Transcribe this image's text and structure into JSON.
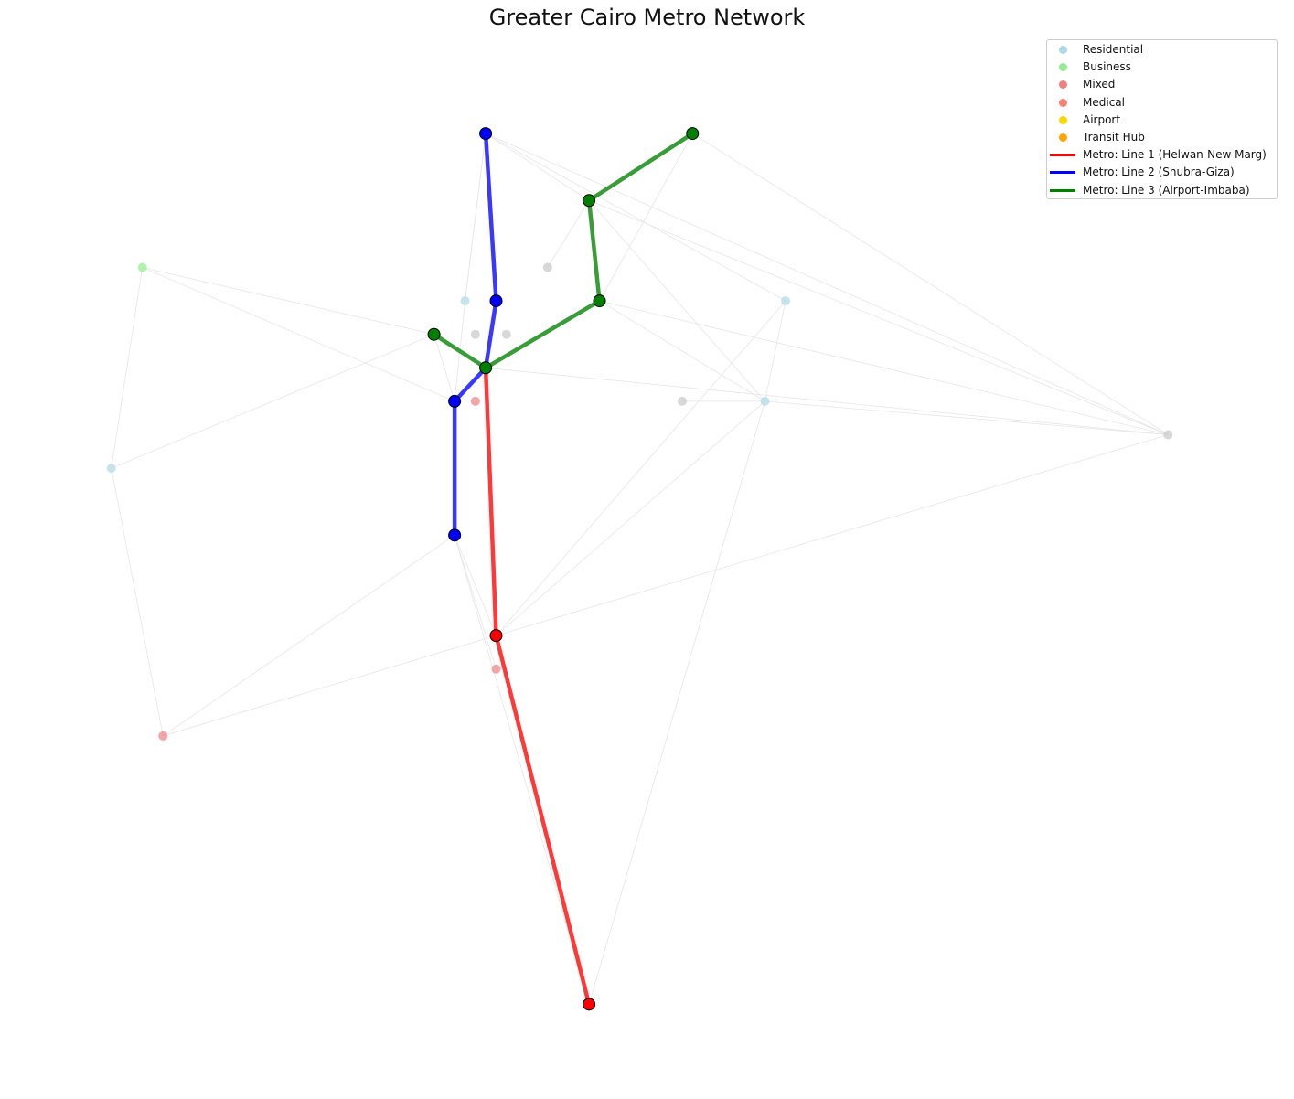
{
  "title": "Greater Cairo Metro Network",
  "colors": {
    "edge": "#e6e6e6",
    "station_outline": "#000000",
    "node_default": "#c8c8c8"
  },
  "legend": [
    {
      "kind": "dot",
      "label": "Residential",
      "color": "#add8e6"
    },
    {
      "kind": "dot",
      "label": "Business",
      "color": "#90ee90"
    },
    {
      "kind": "dot",
      "label": "Mixed",
      "color": "#f08080"
    },
    {
      "kind": "dot",
      "label": "Medical",
      "color": "#fa8072"
    },
    {
      "kind": "dot",
      "label": "Airport",
      "color": "#ffd700"
    },
    {
      "kind": "dot",
      "label": "Transit Hub",
      "color": "#ffa500"
    },
    {
      "kind": "line",
      "label": "Metro: Line 1 (Helwan-New Marg)",
      "color": "#ff0000"
    },
    {
      "kind": "line",
      "label": "Metro: Line 2 (Shubra-Giza)",
      "color": "#0000ff"
    },
    {
      "kind": "line",
      "label": "Metro: Line 3 (Airport-Imbaba)",
      "color": "#008000"
    }
  ],
  "chart_data": {
    "type": "network",
    "title": "Greater Cairo Metro Network",
    "legend_placement": "top-right",
    "grid": false,
    "nodes": [
      {
        "id": "n1",
        "x": 0.3717,
        "y": 0.8915,
        "type": "Line 2 station",
        "color": "#0000ff"
      },
      {
        "id": "n2",
        "x": 0.5362,
        "y": 0.8915,
        "type": "Line 3 station",
        "color": "#008000"
      },
      {
        "id": "n3",
        "x": 0.4539,
        "y": 0.8285,
        "type": "Line 3 station",
        "color": "#008000"
      },
      {
        "id": "n4",
        "x": 0.0987,
        "y": 0.7655,
        "type": "Business",
        "color": "#90ee90"
      },
      {
        "id": "n5",
        "x": 0.421,
        "y": 0.7655,
        "type": "Other",
        "color": "#c8c8c8"
      },
      {
        "id": "n6",
        "x": 0.3553,
        "y": 0.734,
        "type": "Residential",
        "color": "#add8e6"
      },
      {
        "id": "n7",
        "x": 0.38,
        "y": 0.734,
        "type": "Line 2 station",
        "color": "#0000ff"
      },
      {
        "id": "n8",
        "x": 0.4622,
        "y": 0.734,
        "type": "Line 3 station",
        "color": "#008000"
      },
      {
        "id": "n9",
        "x": 0.6102,
        "y": 0.734,
        "type": "Residential",
        "color": "#add8e6"
      },
      {
        "id": "n10",
        "x": 0.3306,
        "y": 0.7025,
        "type": "Line 3 station",
        "color": "#008000"
      },
      {
        "id": "n11",
        "x": 0.3635,
        "y": 0.7025,
        "type": "Other",
        "color": "#c8c8c8"
      },
      {
        "id": "n12",
        "x": 0.3882,
        "y": 0.7025,
        "type": "Other",
        "color": "#c8c8c8"
      },
      {
        "id": "n13",
        "x": 0.3717,
        "y": 0.671,
        "type": "Interchange",
        "color": "#008000"
      },
      {
        "id": "n14",
        "x": 0.347,
        "y": 0.6395,
        "type": "Line 2 station",
        "color": "#0000ff"
      },
      {
        "id": "n15",
        "x": 0.3635,
        "y": 0.6395,
        "type": "Mixed",
        "color": "#f08080"
      },
      {
        "id": "n16",
        "x": 0.528,
        "y": 0.6395,
        "type": "Other",
        "color": "#c8c8c8"
      },
      {
        "id": "n17",
        "x": 0.5938,
        "y": 0.6395,
        "type": "Residential",
        "color": "#add8e6"
      },
      {
        "id": "n18",
        "x": 0.9144,
        "y": 0.608,
        "type": "Other",
        "color": "#c8c8c8"
      },
      {
        "id": "n19",
        "x": 0.074,
        "y": 0.5765,
        "type": "Residential",
        "color": "#add8e6"
      },
      {
        "id": "n20",
        "x": 0.347,
        "y": 0.5135,
        "type": "Line 2 station",
        "color": "#0000ff"
      },
      {
        "id": "n21",
        "x": 0.38,
        "y": 0.419,
        "type": "Line 1 station",
        "color": "#ff0000"
      },
      {
        "id": "n22",
        "x": 0.38,
        "y": 0.3875,
        "type": "Mixed",
        "color": "#f08080"
      },
      {
        "id": "n23",
        "x": 0.1151,
        "y": 0.3245,
        "type": "Mixed",
        "color": "#f08080"
      },
      {
        "id": "n24",
        "x": 0.4539,
        "y": 0.072,
        "type": "Line 1 station",
        "color": "#ff0000"
      }
    ],
    "metro_lines": [
      {
        "name": "Metro: Line 1 (Helwan-New Marg)",
        "color": "#ff0000",
        "stations": [
          "n13",
          "n21",
          "n24"
        ]
      },
      {
        "name": "Metro: Line 2 (Shubra-Giza)",
        "color": "#0000ff",
        "stations": [
          "n1",
          "n7",
          "n13",
          "n14",
          "n20"
        ]
      },
      {
        "name": "Metro: Line 3 (Airport-Imbaba)",
        "color": "#008000",
        "stations": [
          "n2",
          "n3",
          "n8",
          "n13",
          "n10"
        ]
      }
    ],
    "edges": [
      [
        "n1",
        "n3"
      ],
      [
        "n1",
        "n9"
      ],
      [
        "n1",
        "n18"
      ],
      [
        "n1",
        "n6"
      ],
      [
        "n2",
        "n8"
      ],
      [
        "n2",
        "n18"
      ],
      [
        "n3",
        "n17"
      ],
      [
        "n3",
        "n18"
      ],
      [
        "n3",
        "n5"
      ],
      [
        "n4",
        "n10"
      ],
      [
        "n4",
        "n14"
      ],
      [
        "n4",
        "n19"
      ],
      [
        "n6",
        "n14"
      ],
      [
        "n6",
        "n1"
      ],
      [
        "n8",
        "n17"
      ],
      [
        "n8",
        "n18"
      ],
      [
        "n9",
        "n21"
      ],
      [
        "n9",
        "n17"
      ],
      [
        "n10",
        "n19"
      ],
      [
        "n10",
        "n14"
      ],
      [
        "n13",
        "n18"
      ],
      [
        "n16",
        "n17"
      ],
      [
        "n17",
        "n18"
      ],
      [
        "n17",
        "n21"
      ],
      [
        "n17",
        "n24"
      ],
      [
        "n18",
        "n21"
      ],
      [
        "n19",
        "n23"
      ],
      [
        "n20",
        "n23"
      ],
      [
        "n20",
        "n22"
      ],
      [
        "n20",
        "n24"
      ],
      [
        "n20",
        "n21"
      ],
      [
        "n21",
        "n23"
      ]
    ]
  }
}
